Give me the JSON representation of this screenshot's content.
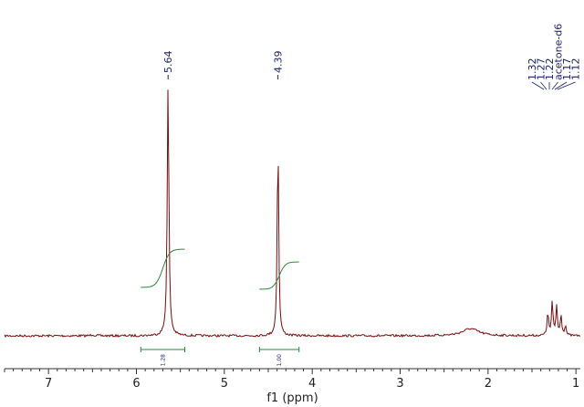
{
  "chart_data": {
    "type": "line",
    "title": "",
    "xlabel": "f1 (ppm)",
    "ylabel": "",
    "xlim": [
      7.5,
      0.95
    ],
    "x_reversed": true,
    "x_ticks": [
      "7",
      "6",
      "5",
      "4",
      "3",
      "2",
      "1"
    ],
    "grid": false,
    "legend": "none",
    "series": [
      {
        "style": "spectrum",
        "color": "#7a0c0c",
        "baseline": 0.0,
        "peaks": [
          {
            "ppm": 6.5,
            "height": 0.005,
            "width": 0.04
          },
          {
            "ppm": 5.64,
            "height": 0.99,
            "width": 0.022
          },
          {
            "ppm": 4.39,
            "height": 0.78,
            "width": 0.02
          },
          {
            "ppm": 2.2,
            "height": 0.028,
            "width": 0.22
          },
          {
            "ppm": 1.32,
            "height": 0.09,
            "width": 0.02
          },
          {
            "ppm": 1.27,
            "height": 0.13,
            "width": 0.02
          },
          {
            "ppm": 1.22,
            "height": 0.115,
            "width": 0.02
          },
          {
            "ppm": 1.17,
            "height": 0.08,
            "width": 0.02
          },
          {
            "ppm": 1.12,
            "height": 0.04,
            "width": 0.02
          }
        ]
      }
    ],
    "peak_labels": [
      {
        "ppm": 5.64,
        "text": "5.64"
      },
      {
        "ppm": 4.39,
        "text": "4.39"
      }
    ],
    "peak_cluster": {
      "labels": [
        "1.32",
        "1.27",
        "1.22",
        "acetone-d6",
        "1.17",
        "1.12"
      ],
      "color": "#1a1f6e"
    },
    "integrals": [
      {
        "from": 5.95,
        "to": 5.45,
        "value": "1.28",
        "color": "#2a8a3a"
      },
      {
        "from": 4.6,
        "to": 4.15,
        "value": "1.00",
        "color": "#2a8a3a"
      }
    ]
  }
}
